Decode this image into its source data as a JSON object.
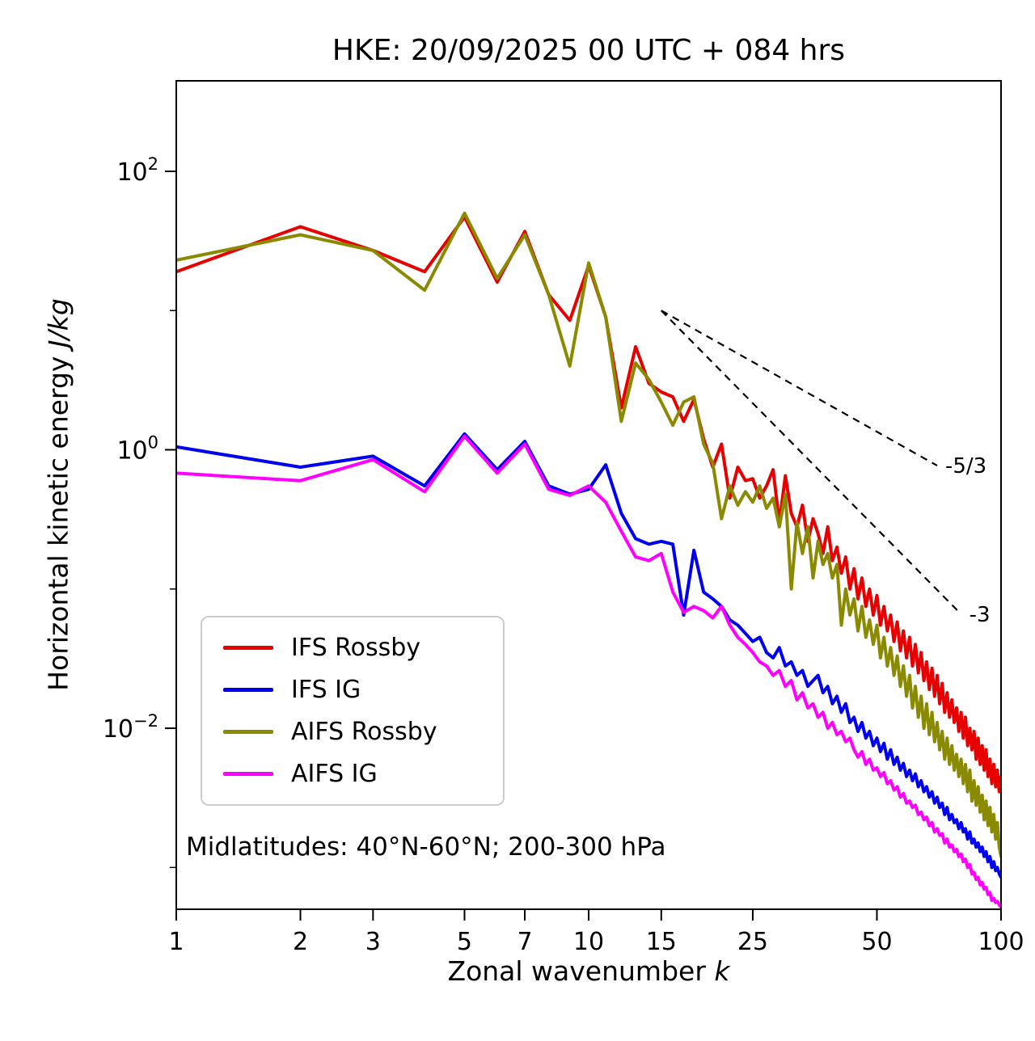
{
  "chart_data": {
    "type": "line",
    "title": "HKE: 20/09/2025 00 UTC + 084 hrs",
    "xlabel": "Zonal wavenumber ",
    "xlabel_italic": "k",
    "ylabel": "Horizontal kinetic energy ",
    "ylabel_italic": "J/kg",
    "x_scale": "log",
    "y_scale": "log",
    "xlim": [
      1,
      100
    ],
    "ylim_exp": [
      -3.3,
      2.65
    ],
    "x_ticks": [
      1,
      2,
      3,
      5,
      7,
      10,
      15,
      25,
      50,
      100
    ],
    "y_tick_exponents": [
      2,
      0,
      -2
    ],
    "y_minor_tick_exponents": [
      1,
      -1,
      -3
    ],
    "annotation": "Midlatitudes: 40°N-60°N; 200-300 hPa",
    "legend_position": "lower left",
    "x": [
      1,
      2,
      3,
      4,
      5,
      6,
      7,
      8,
      9,
      10,
      11,
      12,
      13,
      14,
      15,
      16,
      17,
      18,
      19,
      20,
      21,
      22,
      23,
      24,
      25,
      26,
      27,
      28,
      29,
      30,
      31,
      32,
      33,
      34,
      35,
      36,
      37,
      38,
      39,
      40,
      41,
      42,
      43,
      44,
      45,
      46,
      47,
      48,
      49,
      50,
      51,
      52,
      53,
      54,
      55,
      56,
      57,
      58,
      59,
      60,
      61,
      62,
      63,
      64,
      65,
      66,
      67,
      68,
      69,
      70,
      71,
      72,
      73,
      74,
      75,
      76,
      77,
      78,
      79,
      80,
      81,
      82,
      83,
      84,
      85,
      86,
      87,
      88,
      89,
      90,
      91,
      92,
      93,
      94,
      95,
      96,
      97,
      98,
      99,
      100
    ],
    "series": [
      {
        "name": "IFS Rossby",
        "color": "#e60000",
        "values": [
          19,
          40,
          27,
          19,
          47,
          16,
          37,
          13,
          8.5,
          21,
          9,
          2.0,
          5.5,
          3.0,
          2.6,
          2.4,
          1.6,
          2.3,
          1.2,
          0.75,
          1.1,
          0.45,
          0.75,
          0.6,
          0.62,
          0.45,
          0.55,
          0.72,
          0.3,
          0.65,
          0.35,
          0.28,
          0.4,
          0.22,
          0.32,
          0.25,
          0.18,
          0.28,
          0.16,
          0.2,
          0.13,
          0.17,
          0.1,
          0.14,
          0.085,
          0.12,
          0.075,
          0.1,
          0.065,
          0.09,
          0.055,
          0.075,
          0.05,
          0.065,
          0.042,
          0.058,
          0.036,
          0.05,
          0.032,
          0.045,
          0.028,
          0.04,
          0.025,
          0.035,
          0.022,
          0.03,
          0.019,
          0.027,
          0.017,
          0.024,
          0.015,
          0.021,
          0.013,
          0.018,
          0.012,
          0.016,
          0.011,
          0.014,
          0.0095,
          0.013,
          0.0085,
          0.012,
          0.0075,
          0.01,
          0.007,
          0.0095,
          0.006,
          0.0085,
          0.0055,
          0.0075,
          0.005,
          0.007,
          0.0045,
          0.006,
          0.004,
          0.0055,
          0.0038,
          0.005,
          0.0035,
          0.0045
        ]
      },
      {
        "name": "IFS IG",
        "color": "#0000ee",
        "values": [
          1.05,
          0.75,
          0.9,
          0.55,
          1.3,
          0.72,
          1.15,
          0.55,
          0.48,
          0.52,
          0.78,
          0.35,
          0.23,
          0.21,
          0.22,
          0.21,
          0.065,
          0.19,
          0.095,
          0.085,
          0.075,
          0.06,
          0.055,
          0.048,
          0.042,
          0.045,
          0.035,
          0.032,
          0.038,
          0.028,
          0.03,
          0.024,
          0.026,
          0.02,
          0.022,
          0.024,
          0.018,
          0.02,
          0.015,
          0.017,
          0.013,
          0.015,
          0.011,
          0.012,
          0.0095,
          0.011,
          0.0085,
          0.0095,
          0.0075,
          0.0085,
          0.0068,
          0.0078,
          0.006,
          0.007,
          0.0055,
          0.0062,
          0.005,
          0.0056,
          0.0045,
          0.005,
          0.0042,
          0.0047,
          0.0038,
          0.0042,
          0.0035,
          0.0038,
          0.0032,
          0.0035,
          0.0029,
          0.0032,
          0.0027,
          0.0029,
          0.0024,
          0.0027,
          0.0022,
          0.0024,
          0.0021,
          0.0022,
          0.0019,
          0.0021,
          0.0018,
          0.0019,
          0.0016,
          0.0018,
          0.0015,
          0.0016,
          0.0014,
          0.0015,
          0.0013,
          0.0014,
          0.0012,
          0.0013,
          0.0011,
          0.0012,
          0.001,
          0.0011,
          0.00095,
          0.001,
          0.0009,
          0.00085
        ]
      },
      {
        "name": "AIFS Rossby",
        "color": "#8a8a00",
        "values": [
          23,
          35,
          27,
          14,
          50,
          17,
          35,
          13,
          4.0,
          22,
          9,
          1.6,
          4.2,
          3.2,
          2.2,
          1.5,
          2.2,
          2.4,
          1.1,
          0.8,
          0.32,
          0.55,
          0.4,
          0.5,
          0.42,
          0.55,
          0.38,
          0.45,
          0.28,
          0.48,
          0.1,
          0.3,
          0.18,
          0.28,
          0.12,
          0.22,
          0.15,
          0.18,
          0.12,
          0.15,
          0.055,
          0.1,
          0.065,
          0.085,
          0.05,
          0.075,
          0.045,
          0.06,
          0.04,
          0.055,
          0.032,
          0.045,
          0.028,
          0.038,
          0.024,
          0.033,
          0.02,
          0.028,
          0.017,
          0.024,
          0.014,
          0.02,
          0.012,
          0.017,
          0.01,
          0.015,
          0.009,
          0.013,
          0.008,
          0.011,
          0.007,
          0.0095,
          0.006,
          0.0085,
          0.0055,
          0.0075,
          0.005,
          0.0065,
          0.0045,
          0.006,
          0.004,
          0.0055,
          0.0035,
          0.005,
          0.003,
          0.0042,
          0.0028,
          0.0038,
          0.0025,
          0.0033,
          0.0022,
          0.003,
          0.002,
          0.0027,
          0.0018,
          0.0024,
          0.0016,
          0.0021,
          0.0014,
          0.0012
        ]
      },
      {
        "name": "AIFS IG",
        "color": "#ff00ff",
        "values": [
          0.68,
          0.6,
          0.85,
          0.5,
          1.25,
          0.68,
          1.1,
          0.52,
          0.47,
          0.55,
          0.42,
          0.26,
          0.17,
          0.16,
          0.18,
          0.095,
          0.068,
          0.075,
          0.07,
          0.062,
          0.075,
          0.055,
          0.045,
          0.04,
          0.035,
          0.03,
          0.028,
          0.024,
          0.026,
          0.02,
          0.022,
          0.016,
          0.018,
          0.014,
          0.015,
          0.012,
          0.013,
          0.01,
          0.011,
          0.009,
          0.0095,
          0.008,
          0.0085,
          0.007,
          0.0062,
          0.0068,
          0.0055,
          0.006,
          0.005,
          0.0052,
          0.0045,
          0.0048,
          0.004,
          0.0042,
          0.0036,
          0.0038,
          0.0032,
          0.0034,
          0.0029,
          0.003,
          0.0027,
          0.0028,
          0.0024,
          0.0025,
          0.0022,
          0.0023,
          0.002,
          0.0021,
          0.0018,
          0.0019,
          0.0017,
          0.00175,
          0.0015,
          0.0016,
          0.0014,
          0.00145,
          0.0013,
          0.00135,
          0.0012,
          0.00125,
          0.0011,
          0.00115,
          0.001,
          0.00105,
          0.0009,
          0.00092,
          0.00082,
          0.00085,
          0.00075,
          0.00078,
          0.0007,
          0.00072,
          0.00064,
          0.00066,
          0.00058,
          0.0006,
          0.00056,
          0.00057,
          0.00054,
          0.00052
        ]
      }
    ],
    "reference_lines": [
      {
        "label": "-5/3",
        "slope": "-5/3",
        "start": {
          "k": 15,
          "E": 10
        },
        "end": {
          "k": 70,
          "E": 0.77
        }
      },
      {
        "label": "-3",
        "slope": "-3",
        "start": {
          "k": 15,
          "E": 10
        },
        "end": {
          "k": 80,
          "E": 0.066
        }
      }
    ]
  }
}
